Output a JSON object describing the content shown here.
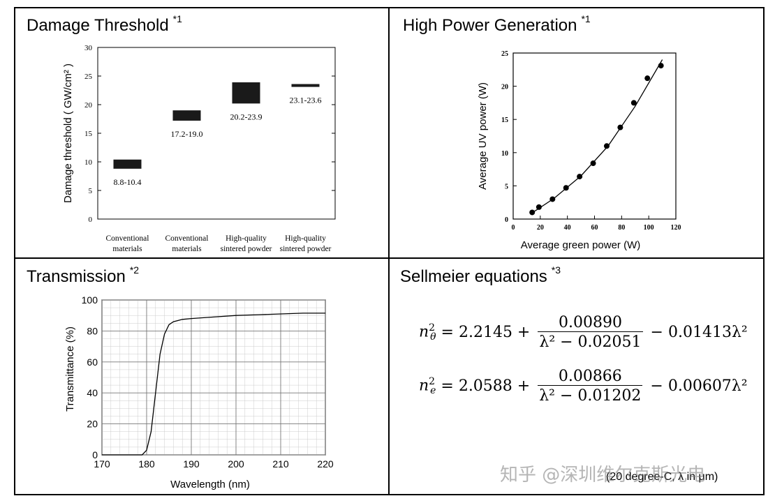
{
  "panels": {
    "damage": {
      "title": "Damage Threshold",
      "ref": "*1"
    },
    "power": {
      "title": "High Power Generation",
      "ref": "*1"
    },
    "transmission": {
      "title": "Transmission",
      "ref": "*2"
    },
    "sellmeier": {
      "title": "Sellmeier equations",
      "ref": "*3"
    }
  },
  "sellmeier": {
    "eq1": {
      "lhs_sub": "θ",
      "const": "= 2.2145 +",
      "num": "0.00890",
      "den": "λ² − 0.02051",
      "tail": "− 0.01413λ²"
    },
    "eq2": {
      "lhs_sub": "e",
      "const": "= 2.0588 +",
      "num": "0.00866",
      "den": "λ² − 0.01202",
      "tail": "− 0.00607λ²"
    },
    "note": "(20 degree-C, λ in μm)"
  },
  "watermark": "知乎 @深圳维尔克斯光电",
  "chart_data": [
    {
      "type": "bar",
      "ylabel": "Damage threshold ( GW/cm² )",
      "ylim": [
        0,
        30
      ],
      "yticks": [
        0,
        5,
        10,
        15,
        20,
        25,
        30
      ],
      "categories": [
        [
          "Conventional",
          "materials"
        ],
        [
          "Conventional",
          "materials"
        ],
        [
          "High-quality",
          "sintered powder"
        ],
        [
          "High-quality",
          "sintered powder"
        ]
      ],
      "ranges": [
        [
          8.8,
          10.4
        ],
        [
          17.2,
          19.0
        ],
        [
          20.2,
          23.9
        ],
        [
          23.1,
          23.6
        ]
      ],
      "labels": [
        "8.8-10.4",
        "17.2-19.0",
        "20.2-23.9",
        "23.1-23.6"
      ]
    },
    {
      "type": "scatter",
      "xlabel": "Average green power (W)",
      "ylabel": "Average UV power (W)",
      "xlim": [
        0,
        120
      ],
      "ylim": [
        0,
        25
      ],
      "xticks": [
        0,
        20,
        40,
        60,
        80,
        100,
        120
      ],
      "yticks": [
        0,
        5,
        10,
        15,
        20,
        25
      ],
      "points": [
        [
          14,
          1.0
        ],
        [
          19,
          1.8
        ],
        [
          29,
          3.0
        ],
        [
          39,
          4.7
        ],
        [
          49,
          6.4
        ],
        [
          59,
          8.4
        ],
        [
          69,
          11.0
        ],
        [
          79,
          13.8
        ],
        [
          89,
          17.5
        ],
        [
          99,
          21.2
        ],
        [
          109,
          23.1
        ]
      ],
      "fit": [
        [
          13,
          0.8
        ],
        [
          30,
          3.1
        ],
        [
          50,
          6.5
        ],
        [
          70,
          11.0
        ],
        [
          90,
          17.0
        ],
        [
          110,
          24.0
        ]
      ]
    },
    {
      "type": "line",
      "xlabel": "Wavelength (nm)",
      "ylabel": "Transmittance (%)",
      "xlim": [
        170,
        220
      ],
      "ylim": [
        0,
        100
      ],
      "xticks": [
        170,
        180,
        190,
        200,
        210,
        220
      ],
      "yticks": [
        0,
        20,
        40,
        60,
        80,
        100
      ],
      "grid": true,
      "x": [
        170,
        179,
        180,
        181,
        182,
        183,
        184,
        185,
        186,
        188,
        190,
        195,
        200,
        205,
        210,
        215,
        220
      ],
      "y": [
        0,
        0,
        3,
        15,
        40,
        65,
        78,
        84,
        86,
        87.5,
        88,
        89,
        90,
        90.5,
        91,
        91.5,
        91.5
      ]
    }
  ]
}
